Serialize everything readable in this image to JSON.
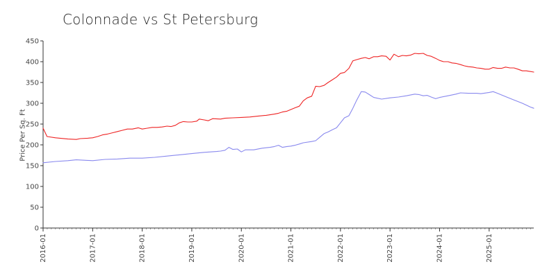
{
  "chart_data": {
    "type": "line",
    "title": "Colonnade vs St Petersburg",
    "xlabel": "",
    "ylabel": "Price Per Sq. Ft",
    "x_tick_labels": [
      "2016-01",
      "2017-01",
      "2018-01",
      "2019-01",
      "2020-01",
      "2021-01",
      "2022-01",
      "2023-01",
      "2024-01",
      "2025-01"
    ],
    "ylim": [
      0,
      450
    ],
    "y_ticks": [
      0,
      50,
      100,
      150,
      200,
      250,
      300,
      350,
      400,
      450
    ],
    "xlim": [
      2016.0,
      2025.9
    ],
    "grid": false,
    "legend": "none",
    "series": [
      {
        "color": "#ee2222",
        "points": [
          [
            2016.0,
            240
          ],
          [
            2016.08,
            220
          ],
          [
            2016.25,
            217
          ],
          [
            2016.5,
            214
          ],
          [
            2016.67,
            213
          ],
          [
            2016.75,
            215
          ],
          [
            2016.9,
            216
          ],
          [
            2017.0,
            217
          ],
          [
            2017.1,
            220
          ],
          [
            2017.2,
            224
          ],
          [
            2017.3,
            226
          ],
          [
            2017.4,
            229
          ],
          [
            2017.5,
            232
          ],
          [
            2017.6,
            235
          ],
          [
            2017.7,
            238
          ],
          [
            2017.8,
            238
          ],
          [
            2017.92,
            241
          ],
          [
            2018.0,
            238
          ],
          [
            2018.1,
            240
          ],
          [
            2018.2,
            242
          ],
          [
            2018.3,
            242
          ],
          [
            2018.4,
            243
          ],
          [
            2018.5,
            245
          ],
          [
            2018.58,
            244
          ],
          [
            2018.67,
            247
          ],
          [
            2018.75,
            253
          ],
          [
            2018.83,
            256
          ],
          [
            2018.92,
            255
          ],
          [
            2019.0,
            255
          ],
          [
            2019.1,
            257
          ],
          [
            2019.15,
            262
          ],
          [
            2019.25,
            260
          ],
          [
            2019.33,
            258
          ],
          [
            2019.42,
            263
          ],
          [
            2019.58,
            262
          ],
          [
            2019.67,
            264
          ],
          [
            2019.83,
            265
          ],
          [
            2020.0,
            266
          ],
          [
            2020.17,
            267
          ],
          [
            2020.33,
            269
          ],
          [
            2020.5,
            271
          ],
          [
            2020.67,
            274
          ],
          [
            2020.75,
            276
          ],
          [
            2020.83,
            279
          ],
          [
            2020.92,
            281
          ],
          [
            2021.0,
            285
          ],
          [
            2021.08,
            289
          ],
          [
            2021.17,
            293
          ],
          [
            2021.25,
            306
          ],
          [
            2021.33,
            313
          ],
          [
            2021.42,
            317
          ],
          [
            2021.5,
            341
          ],
          [
            2021.58,
            340
          ],
          [
            2021.67,
            343
          ],
          [
            2021.75,
            350
          ],
          [
            2021.83,
            356
          ],
          [
            2021.92,
            363
          ],
          [
            2022.0,
            372
          ],
          [
            2022.08,
            374
          ],
          [
            2022.17,
            384
          ],
          [
            2022.25,
            402
          ],
          [
            2022.33,
            405
          ],
          [
            2022.42,
            408
          ],
          [
            2022.5,
            410
          ],
          [
            2022.58,
            407
          ],
          [
            2022.67,
            412
          ],
          [
            2022.75,
            412
          ],
          [
            2022.83,
            414
          ],
          [
            2022.92,
            413
          ],
          [
            2023.0,
            404
          ],
          [
            2023.08,
            418
          ],
          [
            2023.17,
            412
          ],
          [
            2023.25,
            415
          ],
          [
            2023.33,
            414
          ],
          [
            2023.42,
            416
          ],
          [
            2023.5,
            420
          ],
          [
            2023.58,
            419
          ],
          [
            2023.67,
            420
          ],
          [
            2023.75,
            415
          ],
          [
            2023.83,
            413
          ],
          [
            2023.92,
            408
          ],
          [
            2024.0,
            403
          ],
          [
            2024.08,
            400
          ],
          [
            2024.17,
            400
          ],
          [
            2024.25,
            397
          ],
          [
            2024.33,
            396
          ],
          [
            2024.42,
            393
          ],
          [
            2024.5,
            390
          ],
          [
            2024.58,
            388
          ],
          [
            2024.67,
            387
          ],
          [
            2024.75,
            385
          ],
          [
            2024.83,
            384
          ],
          [
            2024.92,
            382
          ],
          [
            2025.0,
            382
          ],
          [
            2025.08,
            386
          ],
          [
            2025.17,
            384
          ],
          [
            2025.25,
            384
          ],
          [
            2025.33,
            387
          ],
          [
            2025.42,
            385
          ],
          [
            2025.5,
            385
          ],
          [
            2025.58,
            382
          ],
          [
            2025.67,
            378
          ],
          [
            2025.75,
            378
          ],
          [
            2025.9,
            375
          ]
        ]
      },
      {
        "color": "#8888ee",
        "points": [
          [
            2016.0,
            157
          ],
          [
            2016.25,
            160
          ],
          [
            2016.5,
            162
          ],
          [
            2016.67,
            164
          ],
          [
            2016.83,
            163
          ],
          [
            2017.0,
            162
          ],
          [
            2017.25,
            165
          ],
          [
            2017.5,
            166
          ],
          [
            2017.75,
            168
          ],
          [
            2018.0,
            168
          ],
          [
            2018.25,
            170
          ],
          [
            2018.5,
            173
          ],
          [
            2018.75,
            176
          ],
          [
            2019.0,
            179
          ],
          [
            2019.25,
            182
          ],
          [
            2019.5,
            184
          ],
          [
            2019.58,
            185
          ],
          [
            2019.67,
            187
          ],
          [
            2019.75,
            194
          ],
          [
            2019.83,
            189
          ],
          [
            2019.92,
            190
          ],
          [
            2020.0,
            183
          ],
          [
            2020.08,
            188
          ],
          [
            2020.25,
            188
          ],
          [
            2020.42,
            192
          ],
          [
            2020.5,
            193
          ],
          [
            2020.58,
            194
          ],
          [
            2020.67,
            196
          ],
          [
            2020.75,
            199
          ],
          [
            2020.83,
            194
          ],
          [
            2020.92,
            196
          ],
          [
            2021.0,
            197
          ],
          [
            2021.08,
            199
          ],
          [
            2021.17,
            202
          ],
          [
            2021.25,
            205
          ],
          [
            2021.42,
            208
          ],
          [
            2021.5,
            210
          ],
          [
            2021.58,
            218
          ],
          [
            2021.67,
            227
          ],
          [
            2021.75,
            231
          ],
          [
            2021.83,
            236
          ],
          [
            2021.92,
            241
          ],
          [
            2022.0,
            253
          ],
          [
            2022.08,
            265
          ],
          [
            2022.17,
            270
          ],
          [
            2022.25,
            288
          ],
          [
            2022.33,
            308
          ],
          [
            2022.42,
            328
          ],
          [
            2022.5,
            327
          ],
          [
            2022.58,
            321
          ],
          [
            2022.67,
            314
          ],
          [
            2022.83,
            310
          ],
          [
            2023.0,
            313
          ],
          [
            2023.17,
            315
          ],
          [
            2023.33,
            318
          ],
          [
            2023.5,
            322
          ],
          [
            2023.58,
            321
          ],
          [
            2023.67,
            318
          ],
          [
            2023.75,
            319
          ],
          [
            2023.83,
            315
          ],
          [
            2023.92,
            311
          ],
          [
            2024.0,
            314
          ],
          [
            2024.17,
            318
          ],
          [
            2024.33,
            322
          ],
          [
            2024.42,
            325
          ],
          [
            2024.58,
            324
          ],
          [
            2024.75,
            324
          ],
          [
            2024.83,
            323
          ],
          [
            2025.0,
            326
          ],
          [
            2025.08,
            328
          ],
          [
            2025.17,
            324
          ],
          [
            2025.33,
            316
          ],
          [
            2025.5,
            308
          ],
          [
            2025.67,
            300
          ],
          [
            2025.83,
            291
          ],
          [
            2025.9,
            288
          ]
        ]
      }
    ]
  }
}
